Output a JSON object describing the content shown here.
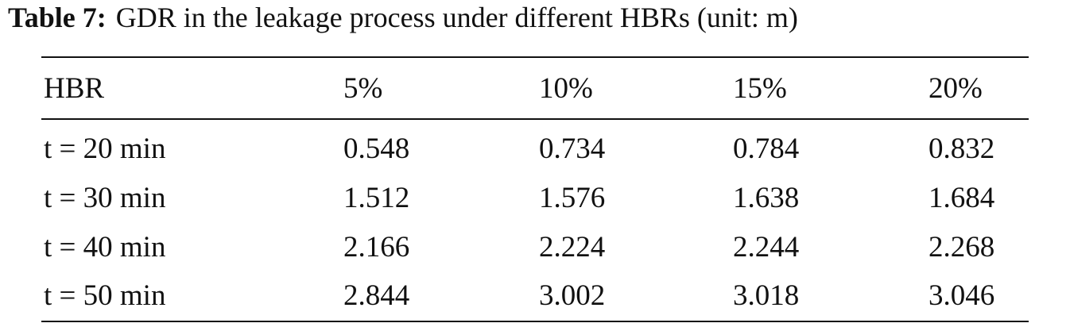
{
  "caption": {
    "label": "Table 7:",
    "text": "GDR in the leakage process under different HBRs (unit: m)"
  },
  "table": {
    "header": [
      "HBR",
      "5%",
      "10%",
      "15%",
      "20%"
    ],
    "rows": [
      [
        "t = 20 min",
        "0.548",
        "0.734",
        "0.784",
        "0.832"
      ],
      [
        "t = 30 min",
        "1.512",
        "1.576",
        "1.638",
        "1.684"
      ],
      [
        "t = 40 min",
        "2.166",
        "2.224",
        "2.244",
        "2.268"
      ],
      [
        "t = 50 min",
        "2.844",
        "3.002",
        "3.018",
        "3.046"
      ]
    ]
  }
}
